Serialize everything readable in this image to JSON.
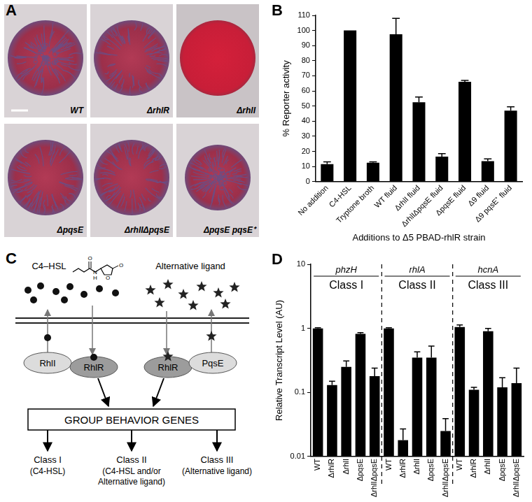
{
  "panel_a": {
    "panel": "A",
    "strains": [
      "WT",
      "ΔrhlR",
      "ΔrhlI",
      "ΔpqsE",
      "ΔrhlIΔpqsE",
      "ΔpqsE pqsE⁺"
    ]
  },
  "panel_c": {
    "panel": "C",
    "ligand_1": "C4–HSL",
    "ligand_2": "Alternative ligand",
    "structure_atoms": [
      "O",
      "N",
      "H",
      "O",
      "O"
    ],
    "proteins": [
      "RhlI",
      "RhlR",
      "RhlR",
      "PqsE"
    ],
    "box": "GROUP BEHAVIOR GENES",
    "classes": [
      {
        "name": "Class I",
        "note": [
          "(C4-HSL)"
        ]
      },
      {
        "name": "Class II",
        "note": [
          "(C4-HSL and/or",
          "Alternative ligand)"
        ]
      },
      {
        "name": "Class III",
        "note": [
          "(Alternative ligand)"
        ]
      }
    ]
  },
  "chart_data": [
    {
      "panel": "B",
      "type": "bar",
      "ylabel": "% Reporter activity",
      "xlabel": "Additions to Δ5 PBAD-rhlR strain",
      "categories": [
        "No addition",
        "C4-HSL",
        "Tryptone broth",
        "WT fluid",
        "ΔrhlI fluid",
        "ΔrhlIΔpqsE fluid",
        "ΔpqsE fluid",
        "Δ9 fluid",
        "Δ9 pqsE⁺ fluid"
      ],
      "values": [
        11.5,
        100,
        12.5,
        97.5,
        52.5,
        16.5,
        66,
        13.5,
        47
      ],
      "errors": [
        1.5,
        0,
        0.5,
        10.5,
        3.5,
        2,
        1,
        1.5,
        2.5
      ],
      "color": "#000000",
      "ylim": [
        0,
        110
      ],
      "yticks": [
        0,
        10,
        20,
        30,
        40,
        50,
        60,
        70,
        80,
        90,
        100,
        110
      ],
      "grid": false
    },
    {
      "panel": "D",
      "type": "bar",
      "log": "y",
      "ylabel": "Relative Transcript Level (AU)",
      "categories": [
        "WT",
        "ΔrhlR",
        "ΔrhlI",
        "ΔpqsE",
        "ΔrhlIΔpqsE"
      ],
      "groups": [
        {
          "name": "phzH",
          "label": "Class I",
          "values": [
            1.0,
            0.13,
            0.25,
            0.82,
            0.18
          ],
          "errors": [
            0.02,
            0.02,
            0.06,
            0.04,
            0.06
          ]
        },
        {
          "name": "rhlA",
          "label": "Class II",
          "values": [
            1.0,
            0.018,
            0.35,
            0.35,
            0.025
          ],
          "errors": [
            0.02,
            0.009,
            0.08,
            0.18,
            0.014
          ]
        },
        {
          "name": "hcnA",
          "label": "Class III",
          "values": [
            1.05,
            0.11,
            0.9,
            0.12,
            0.14
          ],
          "errors": [
            0.08,
            0.01,
            0.1,
            0.05,
            0.1
          ]
        }
      ],
      "color": "#000000",
      "ylim": [
        0.01,
        10
      ],
      "yticks": [
        0.01,
        0.1,
        1,
        10
      ],
      "grid": false
    }
  ]
}
